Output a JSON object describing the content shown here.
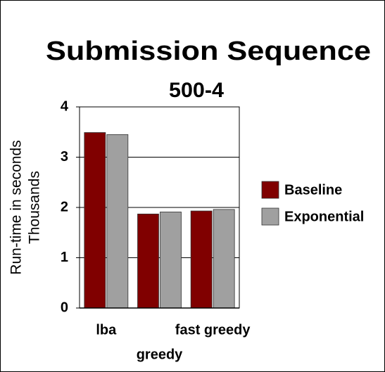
{
  "chart_data": {
    "type": "bar",
    "title": "Submission Sequence",
    "subtitle": "500-4",
    "y_label": [
      "Run-time in seconds",
      "Thousands"
    ],
    "categories": [
      "lba",
      "greedy",
      "fast greedy"
    ],
    "series": [
      {
        "name": "Baseline",
        "color": "#800000",
        "values": [
          3.49,
          1.87,
          1.93
        ]
      },
      {
        "name": "Exponential",
        "color": "#a0a0a0",
        "values": [
          3.45,
          1.91,
          1.96
        ]
      }
    ],
    "ylim": [
      0,
      4
    ],
    "yticks": [
      0,
      1,
      2,
      3,
      4
    ],
    "grid": true,
    "legend": "right"
  }
}
